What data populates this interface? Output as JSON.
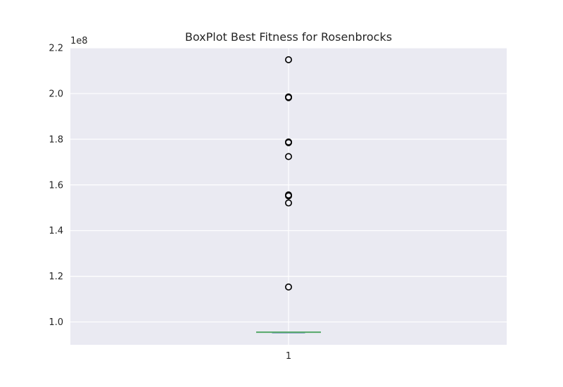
{
  "chart_data": {
    "type": "box",
    "title": "BoxPlot Best Fitness for Rosenbrocks",
    "categories": [
      "1"
    ],
    "y_offset_label": "1e8",
    "ylim": [
      0.9,
      2.2
    ],
    "y_ticks": [
      1.0,
      1.2,
      1.4,
      1.6,
      1.8,
      2.0,
      2.2
    ],
    "y_tick_labels": [
      "1.0",
      "1.2",
      "1.4",
      "1.6",
      "1.8",
      "2.0",
      "2.2"
    ],
    "box": {
      "whisker_low": 0.955,
      "q1": 0.955,
      "median": 0.955,
      "q3": 0.955,
      "whisker_high": 0.955
    },
    "outliers": [
      1.153,
      1.521,
      1.552,
      1.556,
      1.724,
      1.785,
      1.788,
      1.982,
      1.985,
      2.148
    ],
    "grid": true,
    "colors": {
      "plot_background": "#eaeaf2",
      "grid": "#ffffff",
      "median": "#55a868",
      "outlier_edge": "#000000"
    }
  }
}
